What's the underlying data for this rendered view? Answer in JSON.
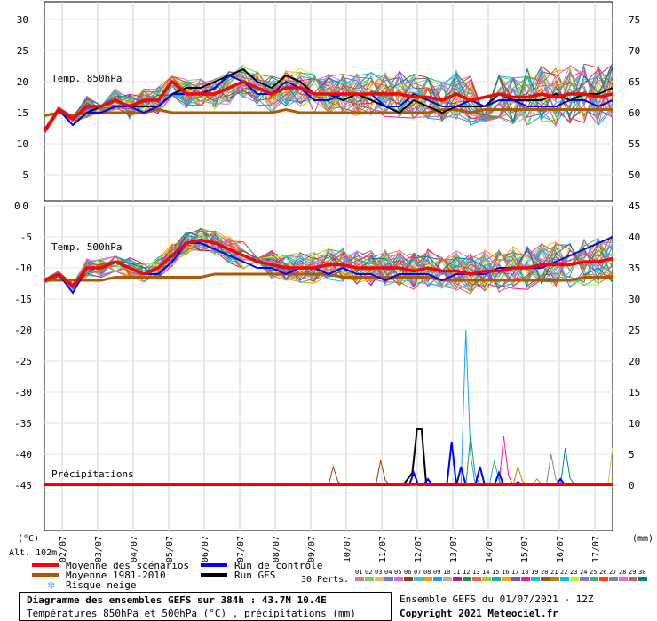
{
  "chart_data": {
    "type": "line",
    "x_labels": [
      "02/07",
      "03/07",
      "04/07",
      "05/07",
      "06/07",
      "07/07",
      "08/07",
      "09/07",
      "10/07",
      "11/07",
      "12/07",
      "13/07",
      "14/07",
      "15/07",
      "16/07",
      "17/07"
    ],
    "panel_850": {
      "label": "Temp. 850hPa",
      "ylim": [
        0,
        30
      ],
      "left_ticks": [
        30,
        25,
        20,
        15,
        10,
        5,
        0
      ],
      "right_ticks": [
        75,
        70,
        65,
        60,
        55,
        50
      ],
      "mean_scenarios": [
        12,
        15.5,
        14,
        16,
        16,
        17,
        16,
        17,
        17,
        20,
        18,
        18,
        18,
        19,
        20,
        19,
        18,
        19,
        19,
        18,
        18,
        18,
        18,
        18,
        18,
        18,
        17.5,
        17.5,
        17,
        18,
        17,
        17.5,
        18,
        17.5,
        17.5,
        18,
        17.5,
        18,
        18,
        17.5,
        18
      ],
      "mean_1981_2010": [
        14.5,
        15,
        14.5,
        15,
        15,
        15,
        15,
        15,
        15.5,
        15,
        15,
        15,
        15,
        15,
        15,
        15,
        15,
        15.5,
        15,
        15,
        15,
        15,
        15,
        15,
        15,
        15,
        15,
        15,
        15.5,
        15.5,
        15,
        15.5,
        15.5,
        15.5,
        15.5,
        15.5,
        15.5,
        15.5,
        15.5,
        15.5,
        15.5
      ],
      "control": [
        12,
        15.5,
        13,
        15,
        15,
        16,
        16,
        15,
        16,
        18,
        18,
        18,
        19,
        21,
        20,
        18,
        18,
        20,
        19,
        17,
        17,
        18,
        18,
        18,
        16,
        16,
        18,
        17,
        16,
        16,
        17,
        16,
        17,
        17,
        16,
        16,
        16,
        17,
        17,
        16,
        17
      ],
      "gfs": [
        12,
        15.5,
        13,
        15,
        16,
        17,
        16,
        16,
        16,
        18,
        19,
        19,
        20,
        21,
        22,
        20,
        19,
        21,
        20,
        18,
        18,
        17,
        18,
        17,
        16,
        15,
        17,
        16,
        15,
        16,
        16,
        16,
        18,
        17,
        17,
        17,
        18,
        17,
        18,
        18,
        19
      ]
    },
    "panel_500": {
      "label": "Temp. 500hPa",
      "ylim": [
        -45,
        0
      ],
      "left_ticks": [
        -5,
        -10,
        -15,
        -20,
        -25,
        -30,
        -35,
        -40,
        -45
      ],
      "right_ticks": [
        45,
        40,
        35,
        30,
        25,
        20,
        15,
        10,
        5,
        0
      ],
      "mean_scenarios": [
        -12,
        -11,
        -13,
        -10,
        -10,
        -9,
        -10,
        -11,
        -10,
        -8,
        -6,
        -5.5,
        -6,
        -7,
        -8,
        -9,
        -9.5,
        -10,
        -10,
        -10,
        -9.5,
        -9.5,
        -10,
        -10,
        -10,
        -10,
        -10.5,
        -10,
        -10.5,
        -10.5,
        -11,
        -10.5,
        -10.5,
        -10,
        -10,
        -9.5,
        -9.5,
        -9.5,
        -9,
        -9,
        -8.5
      ],
      "mean_1981_2010": [
        -12,
        -12,
        -12,
        -12,
        -12,
        -11.5,
        -11.5,
        -11.5,
        -11.5,
        -11.5,
        -11.5,
        -11.5,
        -11,
        -11,
        -11,
        -11,
        -11,
        -11,
        -11,
        -11,
        -11,
        -11.5,
        -11.5,
        -11.5,
        -11.5,
        -11.5,
        -11.5,
        -11.5,
        -12,
        -12,
        -12,
        -12,
        -12,
        -12,
        -12,
        -12,
        -12,
        -12,
        -11.5,
        -11.5,
        -11.5
      ],
      "control": [
        -12,
        -11,
        -14,
        -10,
        -10,
        -9,
        -10,
        -11,
        -11,
        -9,
        -6,
        -6,
        -7,
        -8,
        -9,
        -10,
        -10,
        -11,
        -10,
        -10,
        -11,
        -10,
        -11,
        -11,
        -12,
        -11,
        -11,
        -11,
        -12,
        -11,
        -11,
        -11,
        -10,
        -10,
        -10,
        -10,
        -9,
        -8,
        -7,
        -6,
        -5
      ]
    },
    "panel_precip": {
      "label": "Précipitations",
      "ylim": [
        0,
        45
      ],
      "right_ticks": [
        25,
        20,
        15,
        10,
        5,
        0
      ],
      "gfs": [
        0,
        0,
        0,
        0,
        0,
        0,
        0,
        0,
        0,
        0,
        0,
        0,
        0,
        0,
        0,
        0,
        0,
        0,
        0,
        0,
        0,
        0,
        0,
        0,
        0,
        0,
        0,
        0,
        0,
        0,
        0,
        0,
        0,
        0,
        0,
        0,
        0,
        0,
        0,
        0,
        0,
        0,
        0,
        0,
        0,
        0,
        0,
        0,
        0,
        0,
        0,
        0,
        0,
        0,
        0,
        0,
        0,
        0,
        0,
        0,
        0,
        0,
        0,
        0,
        0,
        0,
        0,
        0,
        0,
        0,
        0,
        0,
        0,
        0,
        0,
        0,
        0,
        0,
        1,
        2,
        9,
        9,
        0,
        0,
        0,
        0,
        0,
        0,
        0,
        0,
        0,
        0,
        0,
        0,
        0,
        0,
        0,
        0,
        0,
        0,
        0,
        0,
        0,
        0,
        0,
        0,
        0,
        0,
        0,
        0,
        0,
        0,
        0,
        0,
        0,
        0,
        0,
        0,
        0,
        0,
        0,
        0,
        0
      ],
      "control_peaks": [
        [
          78,
          2
        ],
        [
          81,
          1
        ],
        [
          86,
          7
        ],
        [
          88,
          3
        ],
        [
          92,
          3
        ],
        [
          96,
          2
        ],
        [
          100,
          0.5
        ],
        [
          109,
          1
        ]
      ],
      "member_peaks": [
        [
          71,
          4
        ],
        [
          89,
          25
        ],
        [
          90,
          8
        ],
        [
          95,
          4
        ],
        [
          97,
          8
        ],
        [
          100,
          3
        ],
        [
          104,
          1
        ],
        [
          107,
          5
        ],
        [
          110,
          6
        ],
        [
          120,
          6
        ],
        [
          61,
          3
        ]
      ]
    },
    "axis_units": {
      "left": "(°C)",
      "right": "(mm)",
      "altitude": "Alt. 102m"
    },
    "legend": {
      "mean": "Moyenne des scénarios",
      "mean_hist": "Moyenne 1981-2010",
      "snow": "Risque neige",
      "control": "Run de contrôle",
      "gfs": "Run GFS",
      "perts": "30 Perts."
    },
    "pert_numbers": [
      "01",
      "02",
      "03",
      "04",
      "05",
      "06",
      "07",
      "08",
      "09",
      "10",
      "11",
      "12",
      "13",
      "14",
      "15",
      "16",
      "17",
      "18",
      "19",
      "20",
      "21",
      "22",
      "23",
      "24",
      "25",
      "26",
      "27",
      "28",
      "29",
      "30"
    ],
    "pert_colors": [
      "#e07b7b",
      "#7bc86c",
      "#e0c050",
      "#6b7fd7",
      "#d86bd8",
      "#8b4513",
      "#4cc3c3",
      "#ff9900",
      "#1fa0ff",
      "#b0b0b0",
      "#c71585",
      "#2e8b57",
      "#ff6347",
      "#9acd32",
      "#20b2aa",
      "#ffa500",
      "#6a5acd",
      "#ff1493",
      "#00ced1",
      "#a0522d",
      "#b8860b",
      "#00bfff",
      "#adff2f",
      "#9370db",
      "#3cb371",
      "#ff4500",
      "#778899",
      "#da70d6",
      "#cd5c5c",
      "#008080"
    ],
    "colors": {
      "mean": "#ff0000",
      "mean_hist": "#b05a00",
      "control": "#0000ff",
      "gfs": "#000000"
    }
  },
  "footer": {
    "title": "Diagramme des ensembles GEFS sur 384h : 43.7N 10.4E",
    "subtitle": "Températures 850hPa et 500hPa (°C) , précipitations (mm)",
    "run_info": "Ensemble GEFS du 01/07/2021 - 12Z",
    "copyright": "Copyright 2021 Meteociel.fr"
  }
}
